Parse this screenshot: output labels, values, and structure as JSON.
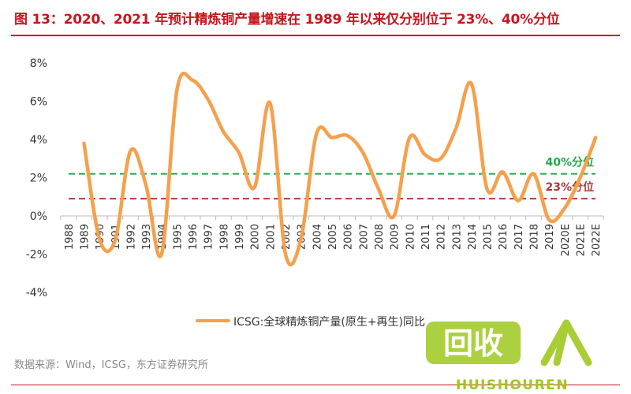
{
  "title": "图 13：2020、2021 年预计精炼铜产量增速在 1989 年以来仅分别位于 23%、40%分位",
  "source": "数据来源：Wind，ICSG，东方证券研究所",
  "watermark": {
    "logo_text": "回收",
    "brand_text": "HUISHOUREN",
    "color": "#9ec81f"
  },
  "chart_data": {
    "type": "line",
    "categories": [
      "1988",
      "1989",
      "1990",
      "1991",
      "1992",
      "1993",
      "1994",
      "1995",
      "1996",
      "1997",
      "1998",
      "1999",
      "2000",
      "2001",
      "2002",
      "2003",
      "2004",
      "2005",
      "2006",
      "2007",
      "2008",
      "2009",
      "2010",
      "2011",
      "2012",
      "2013",
      "2014",
      "2015",
      "2016",
      "2017",
      "2018",
      "2019",
      "2020E",
      "2021E",
      "2022E"
    ],
    "series": [
      {
        "name": "ICSG:全球精炼铜产量(原生+再生)同比",
        "color": "#f5a04c",
        "values": [
          null,
          3.8,
          -1.2,
          -1.3,
          3.4,
          1.6,
          -2.0,
          6.6,
          7.1,
          6.1,
          4.4,
          3.3,
          1.5,
          5.9,
          -2.0,
          -1.2,
          4.3,
          4.1,
          4.2,
          3.3,
          1.4,
          0.0,
          4.1,
          3.2,
          3.0,
          4.6,
          6.9,
          1.4,
          2.3,
          0.8,
          2.2,
          -0.2,
          0.4,
          2.0,
          4.1
        ]
      }
    ],
    "ylim": [
      -4,
      8
    ],
    "yticks": [
      "-4%",
      "-2%",
      "0%",
      "2%",
      "4%",
      "6%",
      "8%"
    ],
    "reference_lines": [
      {
        "label": "40%分位",
        "value": 2.2,
        "color": "#22a84a"
      },
      {
        "label": "23%分位",
        "value": 0.9,
        "color": "#b03a3a"
      }
    ],
    "grid": false,
    "legend_position": "bottom"
  }
}
